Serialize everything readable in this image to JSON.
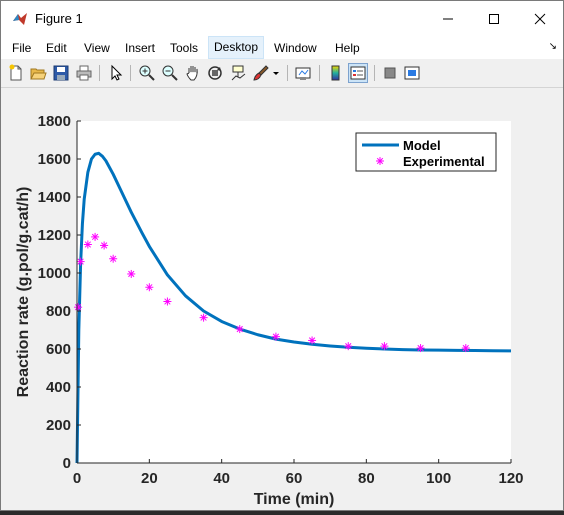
{
  "window": {
    "title": "Figure 1"
  },
  "menu": {
    "items": [
      {
        "label": "File"
      },
      {
        "label": "Edit"
      },
      {
        "label": "View"
      },
      {
        "label": "Insert"
      },
      {
        "label": "Tools"
      },
      {
        "label": "Desktop"
      },
      {
        "label": "Window"
      },
      {
        "label": "Help"
      }
    ]
  },
  "toolbar": {
    "icons": [
      "new-figure-icon",
      "open-icon",
      "save-icon",
      "print-icon",
      "pointer-icon",
      "zoom-in-icon",
      "zoom-out-icon",
      "pan-icon",
      "rotate-3d-icon",
      "data-cursor-icon",
      "brush-icon",
      "brush-dropdown-icon",
      "link-plot-icon",
      "colorbar-icon",
      "legend-icon",
      "hide-plot-tools-icon",
      "show-plot-tools-icon"
    ]
  },
  "chart_data": {
    "type": "line",
    "xlabel": "Time (min)",
    "ylabel": "Reaction rate (g.pol/g.cat/h)",
    "xlim": [
      0,
      120
    ],
    "ylim": [
      0,
      1800
    ],
    "xticks": [
      "0",
      "20",
      "40",
      "60",
      "80",
      "100",
      "120"
    ],
    "yticks": [
      "0",
      "200",
      "400",
      "600",
      "800",
      "1000",
      "1200",
      "1400",
      "1600",
      "1800"
    ],
    "legend_position": "top-right",
    "grid": false,
    "series": [
      {
        "name": "Model",
        "style": "line",
        "color": "#0072bd",
        "x": [
          0,
          0.5,
          1,
          1.5,
          2,
          3,
          4,
          5,
          6,
          7,
          8,
          10,
          12,
          15,
          18,
          20,
          25,
          30,
          35,
          40,
          45,
          50,
          55,
          60,
          65,
          70,
          75,
          80,
          85,
          90,
          95,
          100,
          105,
          110,
          115,
          120
        ],
        "y": [
          0,
          700,
          1050,
          1260,
          1390,
          1530,
          1600,
          1625,
          1630,
          1615,
          1590,
          1520,
          1440,
          1320,
          1210,
          1140,
          990,
          880,
          800,
          745,
          705,
          675,
          652,
          637,
          625,
          616,
          609,
          604,
          600,
          597,
          595,
          594,
          593,
          592,
          591,
          590
        ]
      },
      {
        "name": "Experimental",
        "style": "marker",
        "marker": "*",
        "color": "#ff00ff",
        "x": [
          0.3,
          1,
          3,
          5,
          7.5,
          10,
          15,
          20,
          25,
          35,
          45,
          55,
          65,
          75,
          85,
          95,
          107.5
        ],
        "y": [
          820,
          1060,
          1150,
          1190,
          1145,
          1075,
          995,
          925,
          850,
          765,
          705,
          665,
          645,
          615,
          615,
          605,
          605
        ]
      }
    ]
  }
}
